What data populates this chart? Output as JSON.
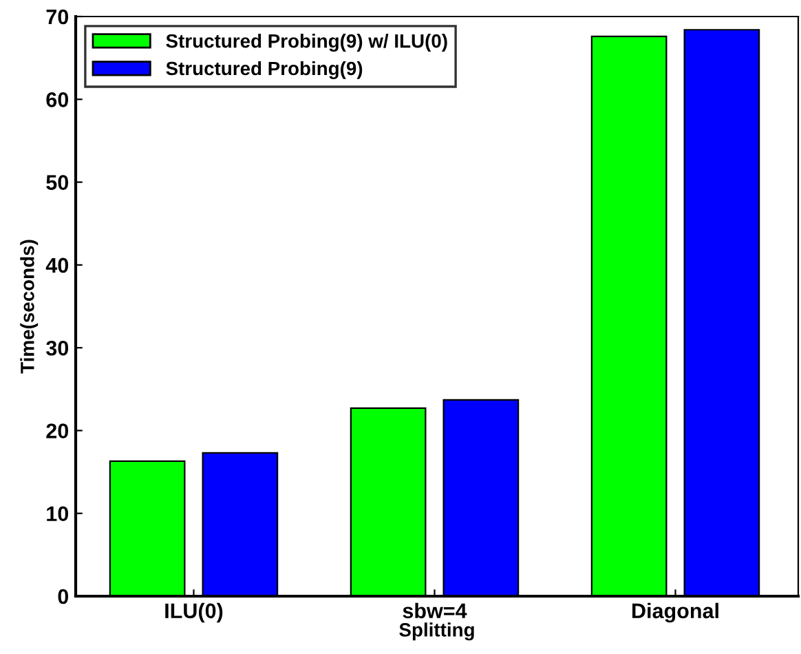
{
  "chart_data": {
    "type": "bar",
    "xlabel": "Splitting",
    "ylabel": "Time(seconds)",
    "categories": [
      "ILU(0)",
      "sbw=4",
      "Diagonal"
    ],
    "series": [
      {
        "name": "Structured Probing(9) w/ ILU(0)",
        "color": "#00ff00",
        "values": [
          16.3,
          22.7,
          67.6
        ]
      },
      {
        "name": "Structured Probing(9)",
        "color": "#0000ff",
        "values": [
          17.3,
          23.7,
          68.4
        ]
      }
    ],
    "ylim": [
      0,
      70
    ],
    "yticks": [
      0,
      10,
      20,
      30,
      40,
      50,
      60,
      70
    ],
    "legend": "top left",
    "grid": false
  }
}
